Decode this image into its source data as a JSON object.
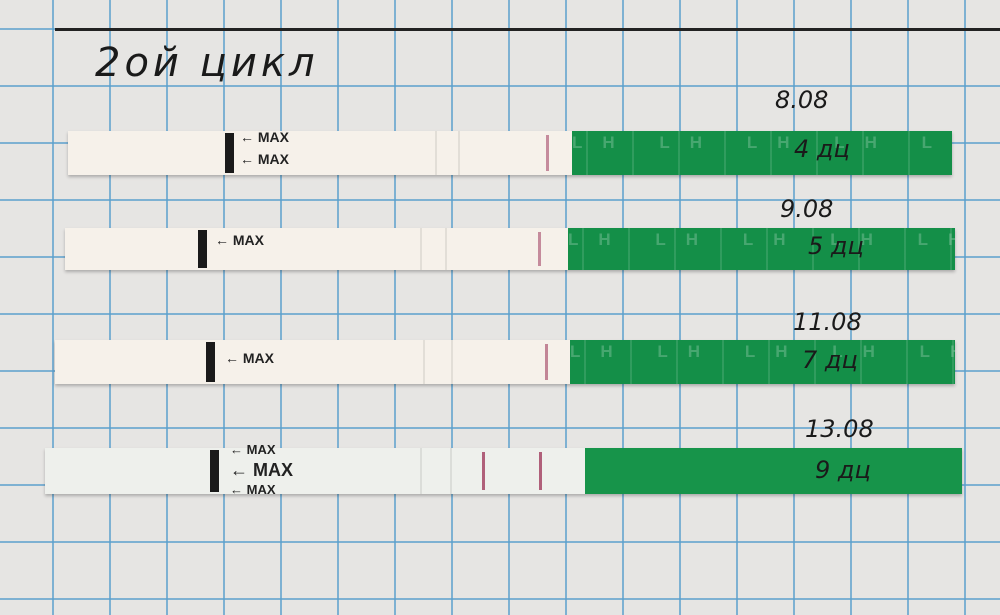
{
  "heading": "2ой цикл",
  "strips": [
    {
      "date": "8.08",
      "day": "4 дц",
      "max_label": "MAX",
      "brand": "LH"
    },
    {
      "date": "9.08",
      "day": "5 дц",
      "max_label": "MAX",
      "brand": "LH"
    },
    {
      "date": "11.08",
      "day": "7 дц",
      "max_label": "MAX",
      "brand": "LH"
    },
    {
      "date": "13.08",
      "day": "9 дц",
      "max_label": "MAX",
      "brand": ""
    }
  ],
  "colors": {
    "paper": "#e6e5e3",
    "grid": "#5aa0cd",
    "strip_green": "#148f48",
    "test_line": "#b0607a"
  }
}
